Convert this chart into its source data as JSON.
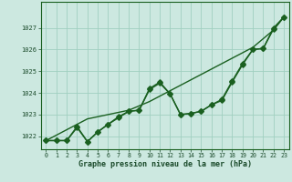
{
  "xlabel": "Graphe pression niveau de la mer (hPa)",
  "bg_color": "#cce8e0",
  "grid_color": "#a0cfc0",
  "line_color": "#1a6020",
  "x": [
    0,
    1,
    2,
    3,
    4,
    5,
    6,
    7,
    8,
    9,
    10,
    11,
    12,
    13,
    14,
    15,
    16,
    17,
    18,
    19,
    20,
    21,
    22,
    23
  ],
  "line1": [
    1021.8,
    1021.8,
    1021.8,
    1022.4,
    1021.75,
    1022.2,
    1022.55,
    1022.85,
    1023.15,
    1023.2,
    1024.15,
    1024.45,
    1023.95,
    1023.0,
    1023.05,
    1023.15,
    1023.45,
    1023.65,
    1024.5,
    1025.3,
    1026.0,
    1026.05,
    1026.95,
    1027.5
  ],
  "line2": [
    1021.8,
    1021.8,
    1021.8,
    1022.45,
    1021.75,
    1022.2,
    1022.55,
    1022.9,
    1023.15,
    1023.2,
    1024.2,
    1024.5,
    1023.95,
    1023.0,
    1023.05,
    1023.15,
    1023.45,
    1023.7,
    1024.55,
    1025.35,
    1026.0,
    1026.05,
    1027.0,
    1027.5
  ],
  "line3_straight": [
    1021.8,
    1022.05,
    1022.3,
    1022.55,
    1022.8,
    1022.9,
    1023.0,
    1023.1,
    1023.2,
    1023.4,
    1023.6,
    1023.85,
    1024.1,
    1024.35,
    1024.6,
    1024.85,
    1025.1,
    1025.35,
    1025.6,
    1025.85,
    1026.1,
    1026.5,
    1026.9,
    1027.5
  ],
  "ylim_min": 1021.4,
  "ylim_max": 1028.2,
  "yticks": [
    1022,
    1023,
    1024,
    1025,
    1026,
    1027
  ],
  "xticks": [
    0,
    1,
    2,
    3,
    4,
    5,
    6,
    7,
    8,
    9,
    10,
    11,
    12,
    13,
    14,
    15,
    16,
    17,
    18,
    19,
    20,
    21,
    22,
    23
  ]
}
